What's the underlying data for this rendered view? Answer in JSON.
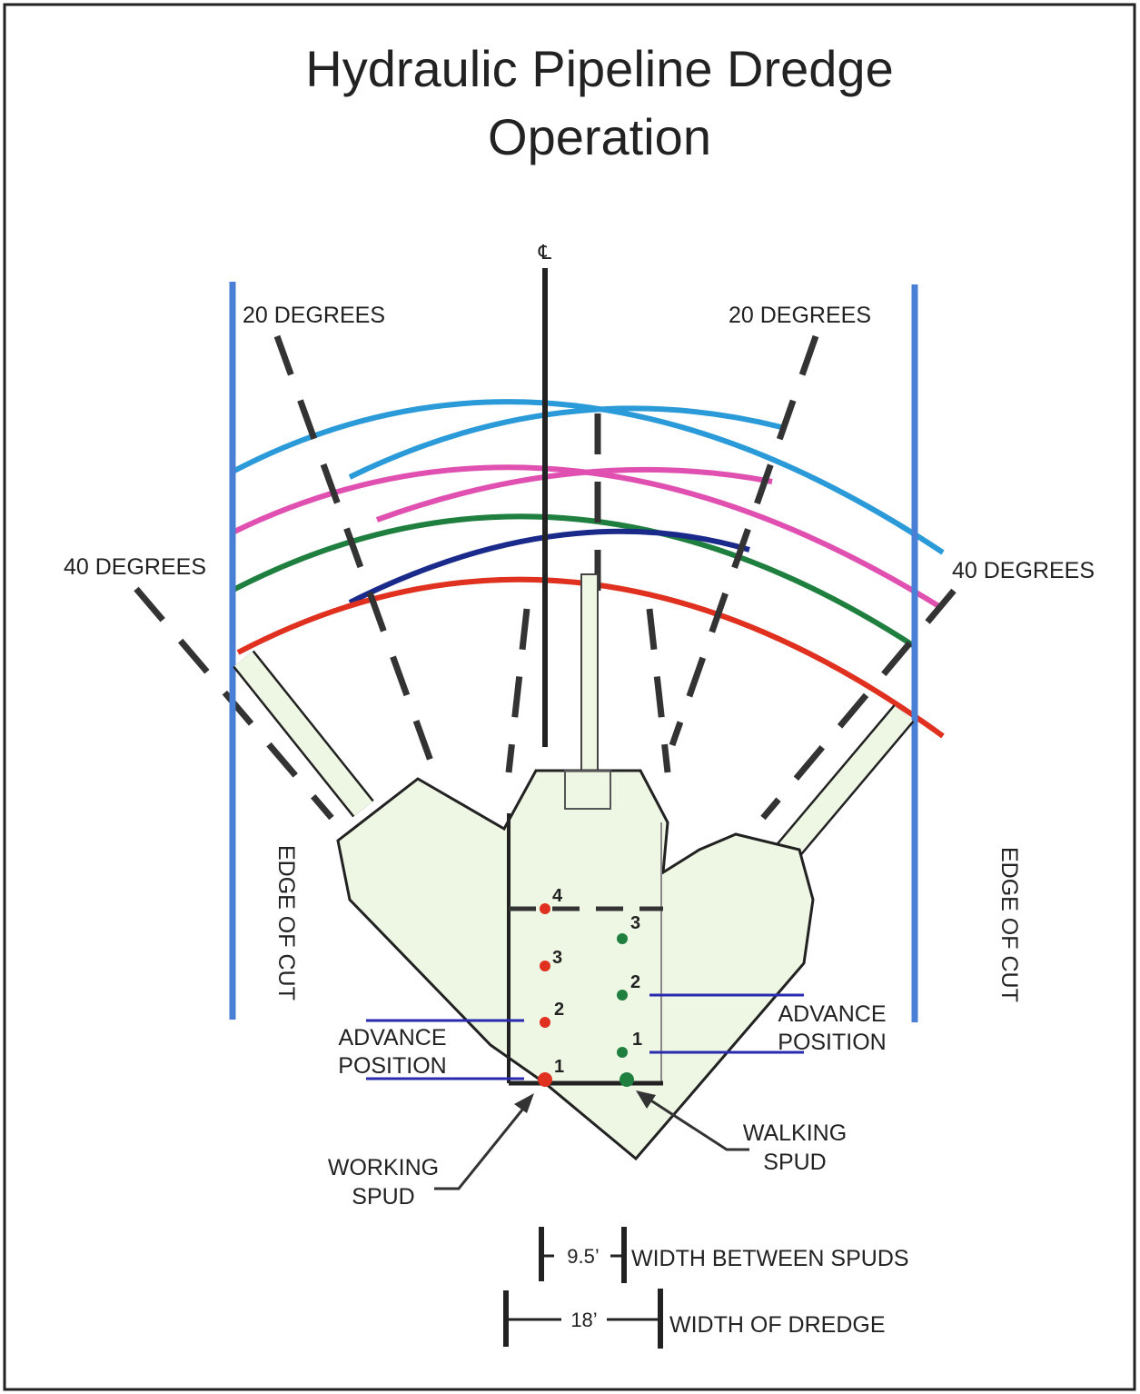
{
  "title": [
    "Hydraulic Pipeline Dredge",
    "Operation"
  ],
  "centerline_symbol": "℄",
  "angle_labels": [
    "20 DEGREES",
    "20 DEGREES",
    "40 DEGREES",
    "40 DEGREES"
  ],
  "edge_labels": [
    "EDGE OF CUT",
    "EDGE OF CUT"
  ],
  "advance_labels": [
    [
      "ADVANCE",
      "POSITION"
    ],
    [
      "ADVANCE",
      "POSITION"
    ]
  ],
  "spud_labels": [
    [
      "WORKING",
      "SPUD"
    ],
    [
      "WALKING",
      "SPUD"
    ]
  ],
  "working_spud_positions": [
    "1",
    "2",
    "3",
    "4"
  ],
  "walking_spud_positions": [
    "1",
    "2",
    "3"
  ],
  "dimensions": [
    {
      "value": "9.5’",
      "label": "WIDTH BETWEEN SPUDS"
    },
    {
      "value": "18’",
      "label": "WIDTH OF DREDGE"
    }
  ]
}
